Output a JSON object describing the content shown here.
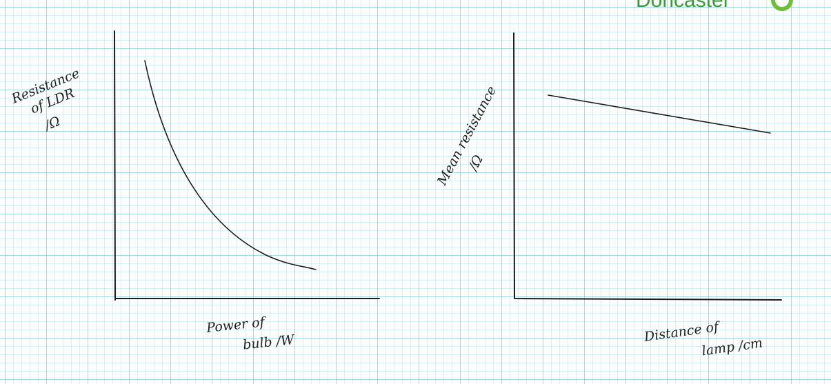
{
  "logo": {
    "text": "Doncaster"
  },
  "graphs": [
    {
      "y_label": [
        "Resistance",
        "of LDR",
        "/Ω"
      ],
      "x_label": [
        "Power of",
        "bulb /W"
      ]
    },
    {
      "y_label": [
        "Mean resistance",
        "/Ω"
      ],
      "x_label": [
        "Distance of",
        "lamp /cm"
      ]
    }
  ]
}
